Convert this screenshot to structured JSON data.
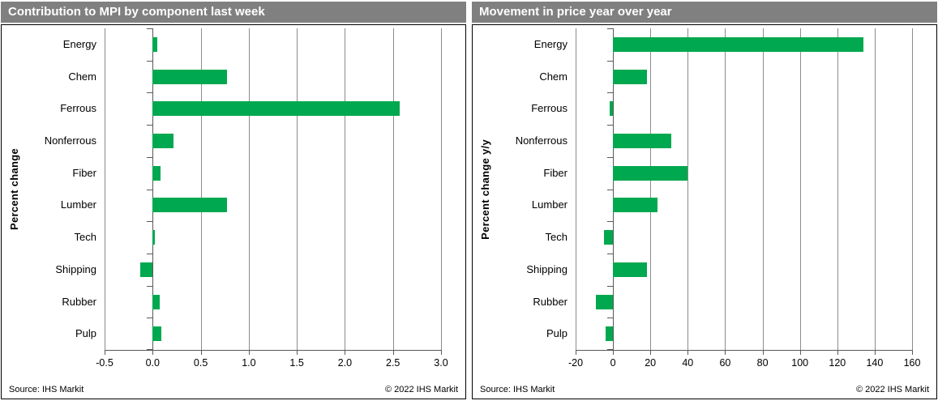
{
  "colors": {
    "header_bg": "#808080",
    "header_text": "#ffffff",
    "bar_green": "#00a84f",
    "gridline": "#8c8c8c",
    "axis": "#595959"
  },
  "charts": [
    {
      "title": "Contribution to MPI by component last week",
      "ylabel": "Percent change",
      "source": "Source:  IHS Markit",
      "copyright": "© 2022  IHS Markit"
    },
    {
      "title": "Movement in price year over year",
      "ylabel": "Percent change y/y",
      "source": "Source:  IHS Markit",
      "copyright": "© 2022  IHS Markit"
    }
  ],
  "chart_data": [
    {
      "type": "bar",
      "orientation": "horizontal",
      "title": "Contribution to MPI by component last week",
      "ylabel": "Percent change",
      "categories": [
        "Energy",
        "Chem",
        "Ferrous",
        "Nonferrous",
        "Fiber",
        "Lumber",
        "Tech",
        "Shipping",
        "Rubber",
        "Pulp"
      ],
      "values": [
        0.05,
        0.77,
        2.57,
        0.22,
        0.08,
        0.77,
        0.02,
        -0.13,
        0.07,
        0.09
      ],
      "xlim": [
        -0.5,
        3.0
      ],
      "xticks": [
        -0.5,
        0.0,
        0.5,
        1.0,
        1.5,
        2.0,
        2.5,
        3.0
      ],
      "xtick_labels": [
        "-0.5",
        "0.0",
        "0.5",
        "1.0",
        "1.5",
        "2.0",
        "2.5",
        "3.0"
      ],
      "bar_color": "#00a84f",
      "grid": true,
      "legend": false
    },
    {
      "type": "bar",
      "orientation": "horizontal",
      "title": "Movement in price year over year",
      "ylabel": "Percent change y/y",
      "categories": [
        "Energy",
        "Chem",
        "Ferrous",
        "Nonferrous",
        "Fiber",
        "Lumber",
        "Tech",
        "Shipping",
        "Rubber",
        "Pulp"
      ],
      "values": [
        134,
        18,
        -2,
        31,
        40,
        24,
        -5,
        18,
        -9,
        -4
      ],
      "xlim": [
        -20,
        160
      ],
      "xticks": [
        -20,
        0,
        20,
        40,
        60,
        80,
        100,
        120,
        140,
        160
      ],
      "xtick_labels": [
        "-20",
        "0",
        "20",
        "40",
        "60",
        "80",
        "100",
        "120",
        "140",
        "160"
      ],
      "bar_color": "#00a84f",
      "grid": true,
      "legend": false
    }
  ]
}
